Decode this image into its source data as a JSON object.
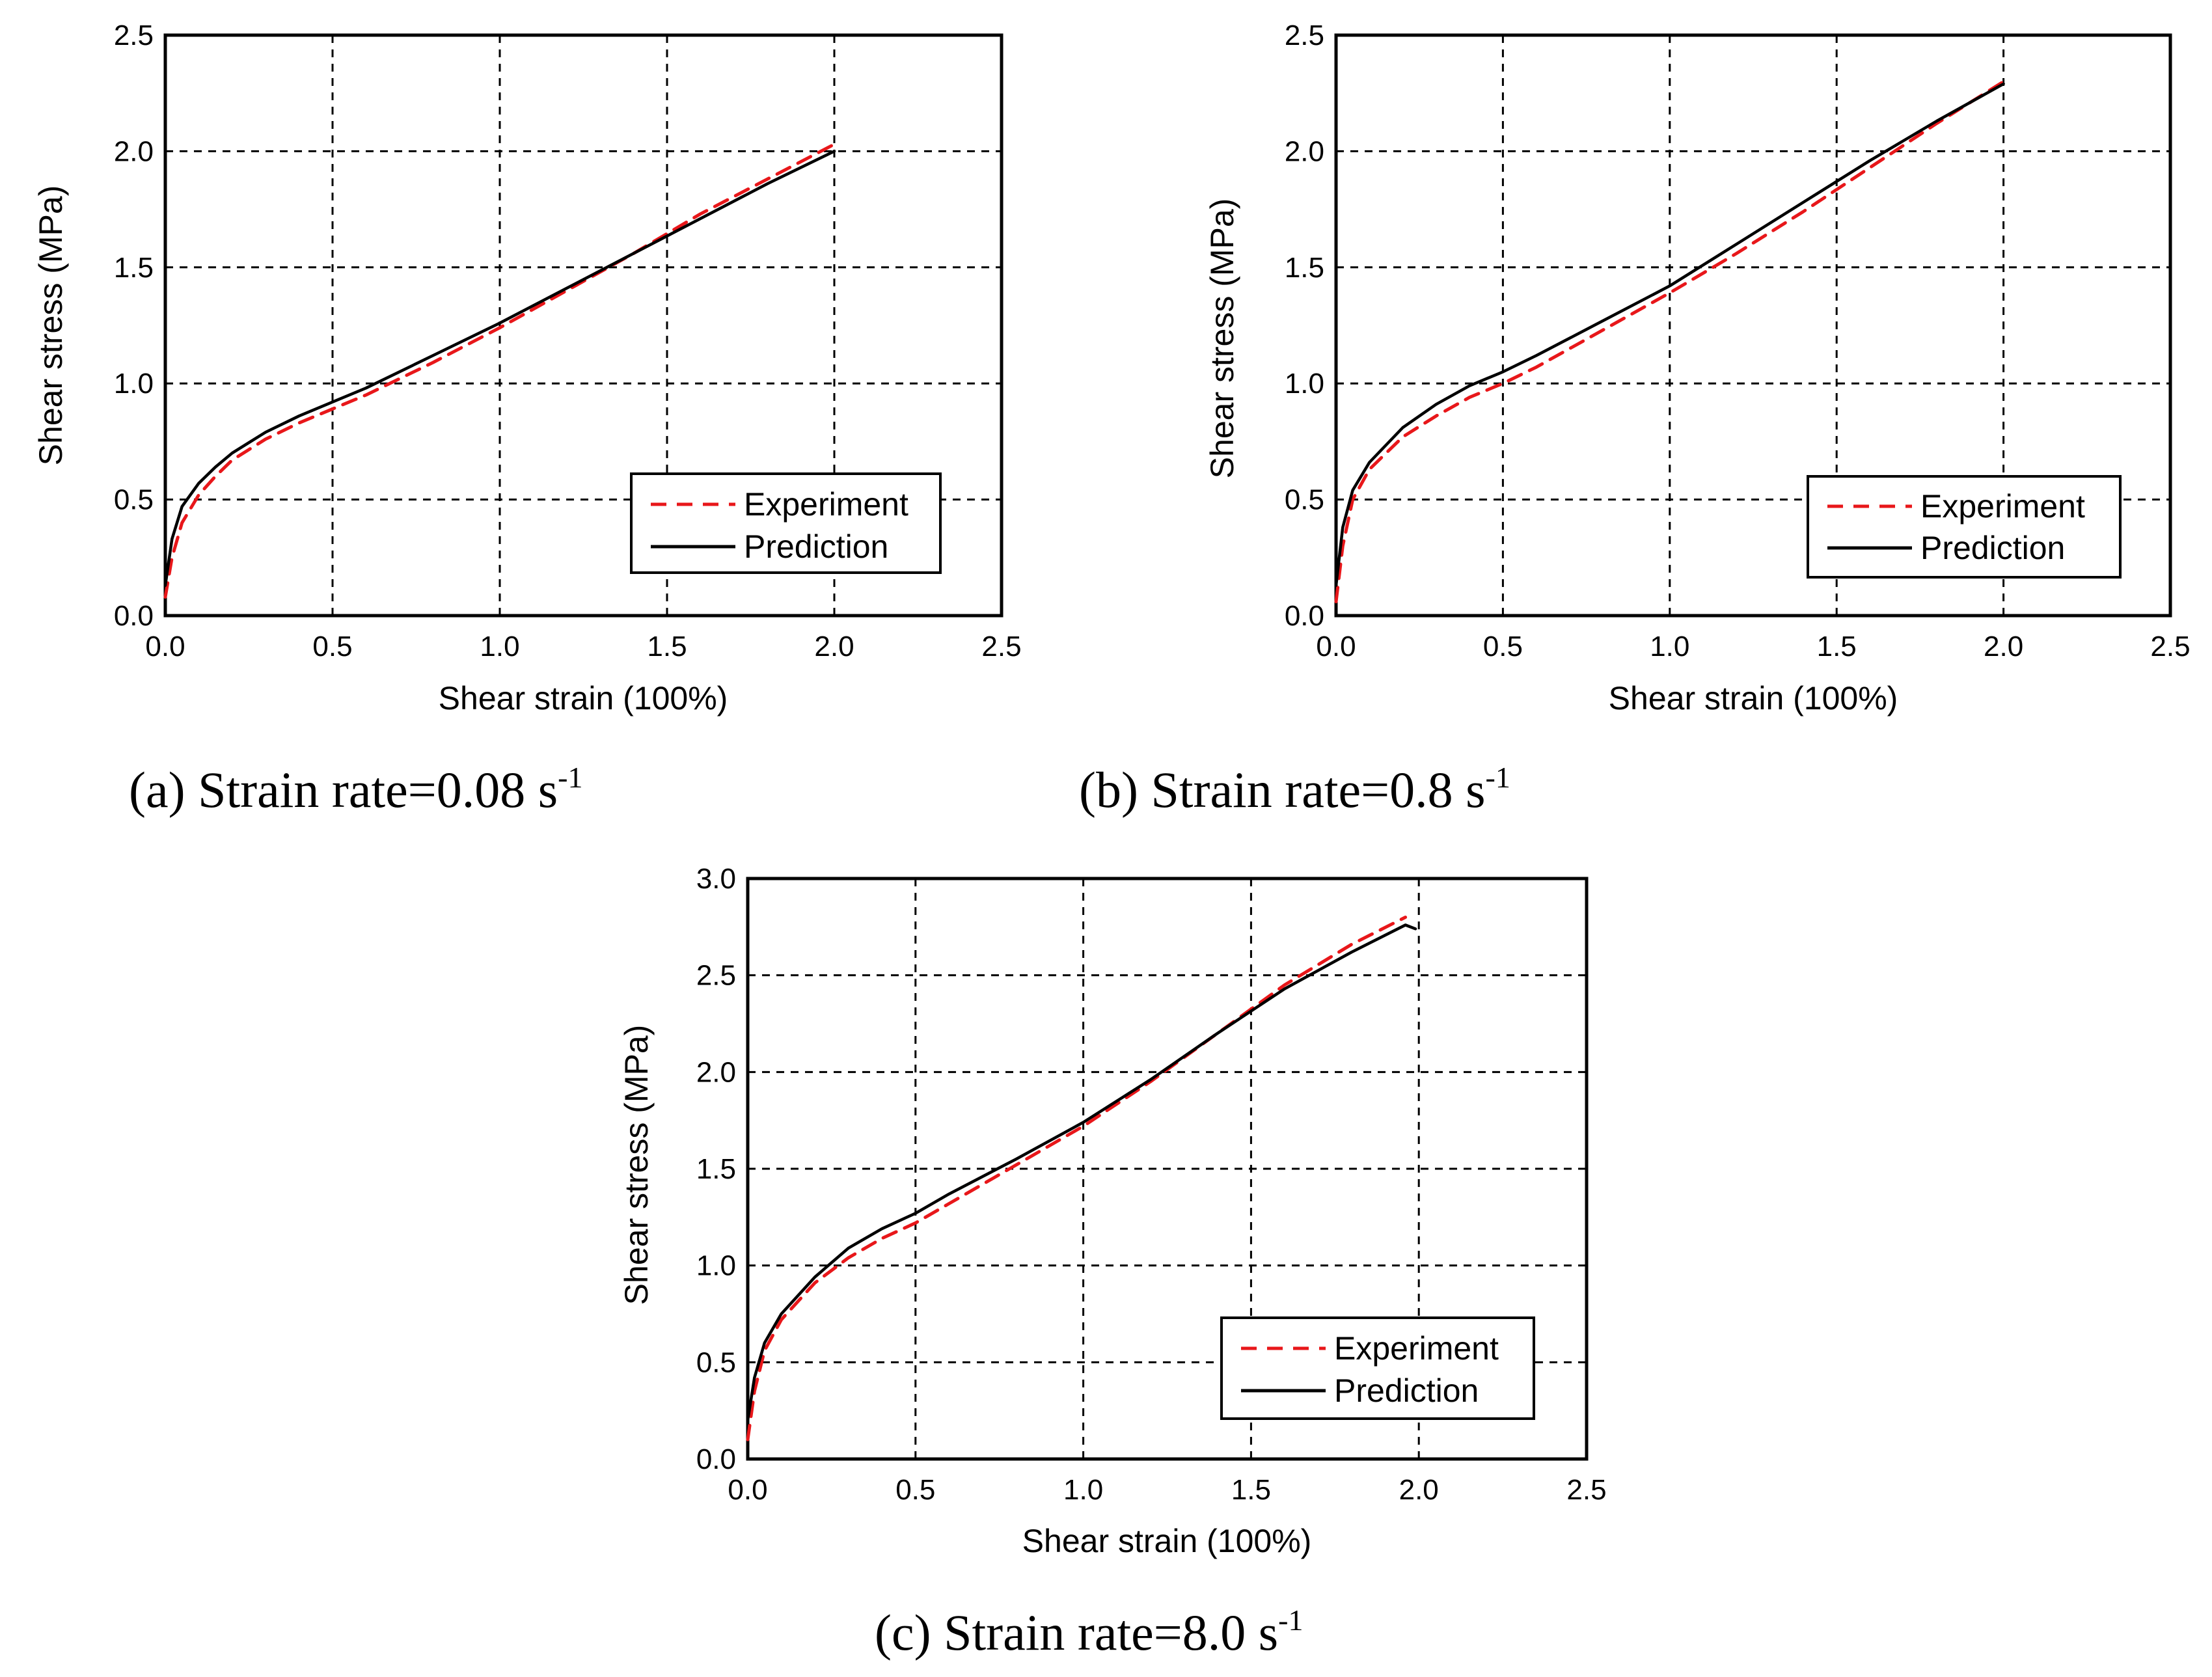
{
  "figure": {
    "colors": {
      "experiment": "#e8171a",
      "prediction": "#000000",
      "grid": "#000000"
    }
  },
  "chart_data": [
    {
      "type": "line",
      "id": "a",
      "caption": {
        "prefix": "(a) Strain rate=0.08 s",
        "sup": "-1"
      },
      "xlabel": "Shear strain (100%)",
      "ylabel": "Shear stress (MPa)",
      "xlim": [
        0,
        2.5
      ],
      "ylim": [
        0,
        2.5
      ],
      "xticks": [
        "0.0",
        "0.5",
        "1.0",
        "1.5",
        "2.0",
        "2.5"
      ],
      "yticks": [
        "0.0",
        "0.5",
        "1.0",
        "1.5",
        "2.0",
        "2.5"
      ],
      "grid": true,
      "legend": {
        "position": "lower-right",
        "entries": [
          "Experiment",
          "Prediction"
        ]
      },
      "series": [
        {
          "name": "Experiment",
          "style": "dashed",
          "x": [
            0.0,
            0.02,
            0.05,
            0.1,
            0.15,
            0.2,
            0.3,
            0.4,
            0.5,
            0.6,
            0.8,
            1.0,
            1.2,
            1.4,
            1.6,
            1.8,
            2.0
          ],
          "y": [
            0.08,
            0.25,
            0.4,
            0.52,
            0.6,
            0.67,
            0.76,
            0.83,
            0.89,
            0.95,
            1.09,
            1.24,
            1.4,
            1.56,
            1.73,
            1.88,
            2.03
          ]
        },
        {
          "name": "Prediction",
          "style": "solid",
          "x": [
            0.0,
            0.02,
            0.05,
            0.1,
            0.15,
            0.2,
            0.3,
            0.4,
            0.5,
            0.6,
            0.8,
            1.0,
            1.2,
            1.4,
            1.6,
            1.8,
            2.0
          ],
          "y": [
            0.13,
            0.33,
            0.47,
            0.57,
            0.64,
            0.7,
            0.79,
            0.86,
            0.92,
            0.98,
            1.12,
            1.26,
            1.41,
            1.56,
            1.71,
            1.86,
            2.0
          ]
        }
      ]
    },
    {
      "type": "line",
      "id": "b",
      "caption": {
        "prefix": "(b) Strain rate=0.8 s",
        "sup": "-1"
      },
      "xlabel": "Shear strain (100%)",
      "ylabel": "Shear stress (MPa)",
      "xlim": [
        0,
        2.5
      ],
      "ylim": [
        0,
        2.5
      ],
      "xticks": [
        "0.0",
        "0.5",
        "1.0",
        "1.5",
        "2.0",
        "2.5"
      ],
      "yticks": [
        "0.0",
        "0.5",
        "1.0",
        "1.5",
        "2.0",
        "2.5"
      ],
      "grid": true,
      "legend": {
        "position": "lower-right",
        "entries": [
          "Experiment",
          "Prediction"
        ]
      },
      "series": [
        {
          "name": "Experiment",
          "style": "dashed",
          "x": [
            0.0,
            0.02,
            0.05,
            0.1,
            0.2,
            0.3,
            0.4,
            0.5,
            0.6,
            0.8,
            1.0,
            1.2,
            1.4,
            1.6,
            1.8,
            2.0
          ],
          "y": [
            0.06,
            0.3,
            0.5,
            0.63,
            0.77,
            0.86,
            0.94,
            1.0,
            1.07,
            1.23,
            1.39,
            1.56,
            1.74,
            1.93,
            2.12,
            2.3
          ]
        },
        {
          "name": "Prediction",
          "style": "solid",
          "x": [
            0.0,
            0.02,
            0.05,
            0.1,
            0.2,
            0.3,
            0.4,
            0.5,
            0.6,
            0.8,
            1.0,
            1.2,
            1.4,
            1.6,
            1.8,
            2.0
          ],
          "y": [
            0.13,
            0.38,
            0.54,
            0.66,
            0.81,
            0.91,
            0.99,
            1.05,
            1.12,
            1.27,
            1.42,
            1.6,
            1.78,
            1.96,
            2.13,
            2.29
          ]
        }
      ]
    },
    {
      "type": "line",
      "id": "c",
      "caption": {
        "prefix": "(c) Strain rate=8.0 s",
        "sup": "-1"
      },
      "xlabel": "Shear strain (100%)",
      "ylabel": "Shear stress (MPa)",
      "xlim": [
        0,
        2.5
      ],
      "ylim": [
        0,
        3.0
      ],
      "xticks": [
        "0.0",
        "0.5",
        "1.0",
        "1.5",
        "2.0",
        "2.5"
      ],
      "yticks": [
        "0.0",
        "0.5",
        "1.0",
        "1.5",
        "2.0",
        "2.5",
        "3.0"
      ],
      "grid": true,
      "legend": {
        "position": "lower-right",
        "entries": [
          "Experiment",
          "Prediction"
        ]
      },
      "series": [
        {
          "name": "Experiment",
          "style": "dashed",
          "x": [
            0.0,
            0.02,
            0.05,
            0.1,
            0.2,
            0.3,
            0.4,
            0.5,
            0.6,
            0.8,
            1.0,
            1.2,
            1.4,
            1.6,
            1.8,
            1.96
          ],
          "y": [
            0.1,
            0.35,
            0.56,
            0.72,
            0.91,
            1.04,
            1.14,
            1.22,
            1.32,
            1.52,
            1.72,
            1.95,
            2.2,
            2.45,
            2.66,
            2.8
          ]
        },
        {
          "name": "Prediction",
          "style": "solid",
          "x": [
            0.0,
            0.02,
            0.05,
            0.1,
            0.2,
            0.3,
            0.4,
            0.5,
            0.6,
            0.8,
            1.0,
            1.2,
            1.4,
            1.6,
            1.8,
            1.96,
            1.99
          ],
          "y": [
            0.2,
            0.42,
            0.6,
            0.75,
            0.94,
            1.09,
            1.19,
            1.27,
            1.37,
            1.55,
            1.74,
            1.96,
            2.2,
            2.43,
            2.62,
            2.76,
            2.74
          ]
        }
      ]
    }
  ]
}
